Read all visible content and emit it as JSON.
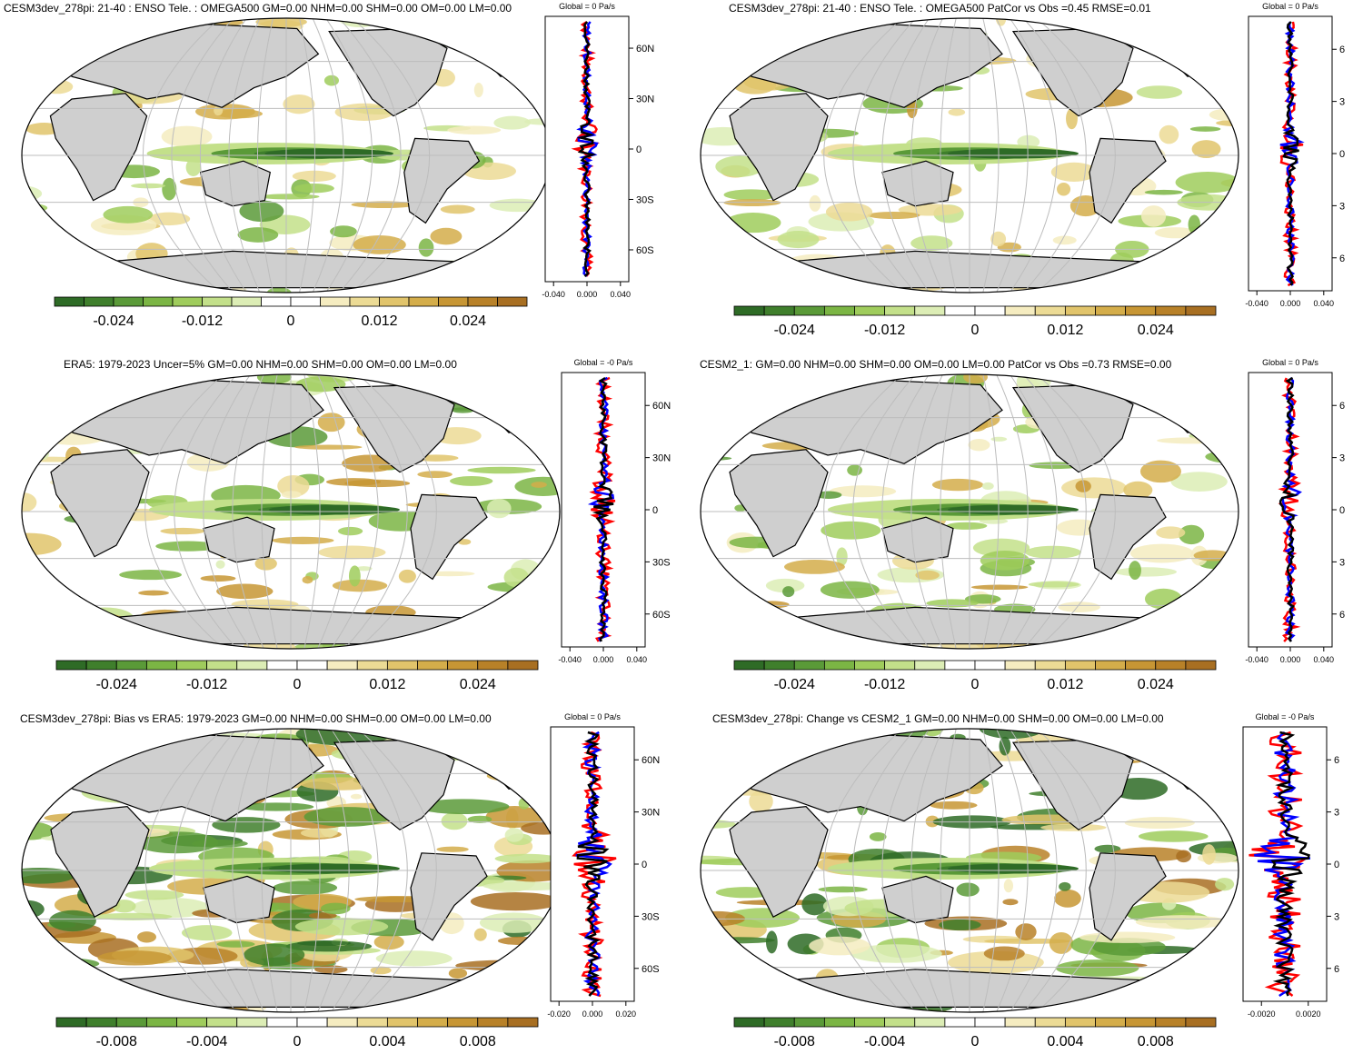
{
  "colors": {
    "ocean": "#ffffff",
    "land": "#cfcfcf",
    "coast": "#000000",
    "grid": "#bdbdbd",
    "palette": [
      "#2e6b26",
      "#3f7f2c",
      "#5a9a38",
      "#7bb544",
      "#9fcc5c",
      "#c3e08a",
      "#dcedb5",
      "#ffffff",
      "#ffffff",
      "#f5ecc0",
      "#ecdb95",
      "#e1c46b",
      "#d4ad4a",
      "#c79634",
      "#b88128",
      "#a86f22"
    ],
    "line_red": "#ff0000",
    "line_blue": "#0000ff",
    "line_black": "#000000"
  },
  "panels": [
    {
      "id": "p1",
      "title": "CESM3dev_278pi: 21-40 : ENSO Tele. : OMEGA500 GM=0.00 NHM=0.00 SHM=0.00 OM=0.00 LM=0.00",
      "zonal_title": "Global = 0 Pa/s",
      "lat_labels": [
        "60N",
        "30N",
        "0",
        "30S",
        "60S"
      ],
      "zonal_ticks": [
        "-0.040",
        "0.000",
        "0.040"
      ],
      "colorbar_labels": [
        "-0.024",
        "-0.012",
        "0",
        "0.012",
        "0.024"
      ],
      "variance": 0.45
    },
    {
      "id": "p2",
      "title": "CESM3dev_278pi: 21-40 : ENSO Tele. : OMEGA500 PatCor vs Obs =0.45 RMSE=0.01",
      "zonal_title": "Global = 0 Pa/s",
      "lat_labels": [
        "6",
        "3",
        "0",
        "3",
        "6"
      ],
      "zonal_ticks": [
        "-0.040",
        "0.000",
        "0.040"
      ],
      "colorbar_labels": [
        "-0.024",
        "-0.012",
        "0",
        "0.012",
        "0.024"
      ],
      "variance": 0.45
    },
    {
      "id": "p3",
      "title": "ERA5: 1979-2023 Uncer=5% GM=0.00 NHM=0.00 SHM=0.00 OM=0.00 LM=0.00",
      "zonal_title": "Global = -0 Pa/s",
      "lat_labels": [
        "60N",
        "30N",
        "0",
        "30S",
        "60S"
      ],
      "zonal_ticks": [
        "-0.040",
        "0.000",
        "0.040"
      ],
      "colorbar_labels": [
        "-0.024",
        "-0.012",
        "0",
        "0.012",
        "0.024"
      ],
      "variance": 0.55
    },
    {
      "id": "p4",
      "title": "CESM2_1: GM=0.00 NHM=0.00 SHM=0.00 OM=0.00 LM=0.00 PatCor vs Obs =0.73 RMSE=0.00",
      "zonal_title": "Global = 0 Pa/s",
      "lat_labels": [
        "6",
        "3",
        "0",
        "3",
        "6"
      ],
      "zonal_ticks": [
        "-0.040",
        "0.000",
        "0.040"
      ],
      "colorbar_labels": [
        "-0.024",
        "-0.012",
        "0",
        "0.012",
        "0.024"
      ],
      "variance": 0.5
    },
    {
      "id": "p5",
      "title": "CESM3dev_278pi: Bias vs ERA5: 1979-2023 GM=0.00 NHM=0.00 SHM=0.00 OM=0.00 LM=0.00",
      "zonal_title": "Global = 0 Pa/s",
      "lat_labels": [
        "60N",
        "30N",
        "0",
        "30S",
        "60S"
      ],
      "zonal_ticks": [
        "-0.020",
        "0.000",
        "0.020"
      ],
      "colorbar_labels": [
        "-0.008",
        "-0.004",
        "0",
        "0.004",
        "0.008"
      ],
      "variance": 1.0
    },
    {
      "id": "p6",
      "title": "CESM3dev_278pi: Change vs CESM2_1 GM=0.00 NHM=0.00 SHM=0.00 OM=0.00 LM=0.00",
      "zonal_title": "Global = -0 Pa/s",
      "lat_labels": [
        "6",
        "3",
        "0",
        "3",
        "6"
      ],
      "zonal_ticks": [
        "-0.0020",
        "0.0020"
      ],
      "colorbar_labels": [
        "-0.008",
        "-0.004",
        "0",
        "0.004",
        "0.008"
      ],
      "variance": 1.0
    }
  ]
}
